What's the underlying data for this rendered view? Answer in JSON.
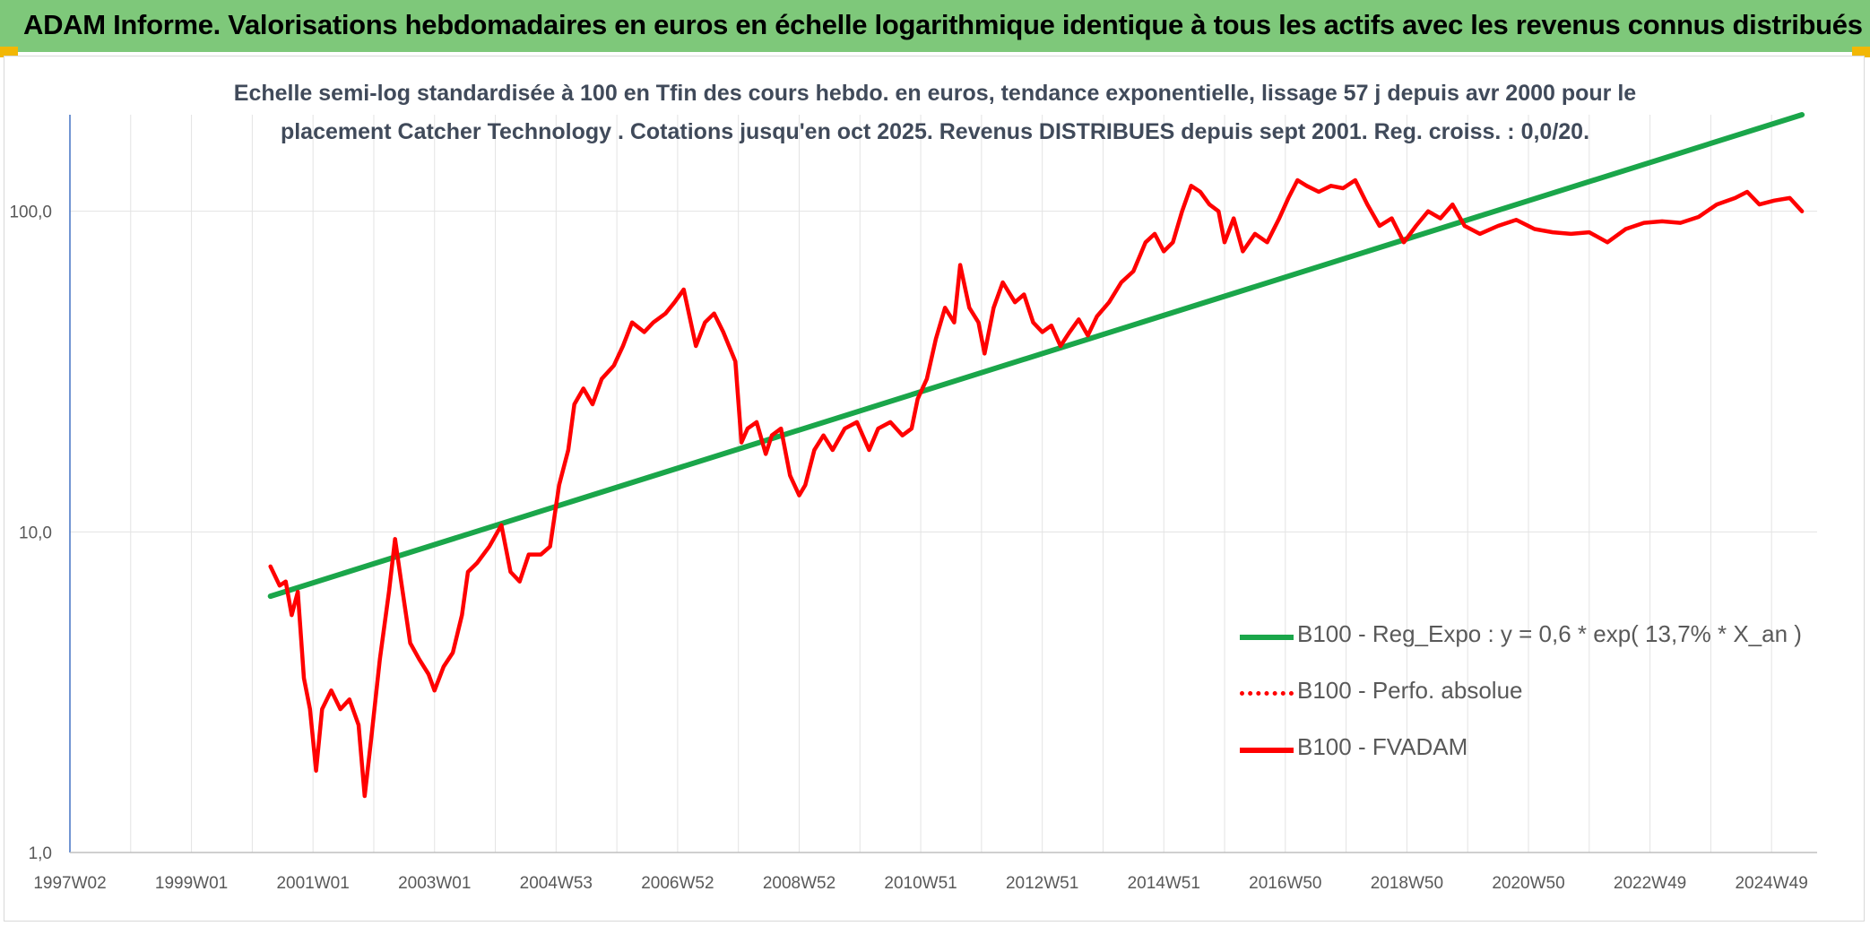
{
  "header": {
    "title": "ADAM Informe. Valorisations hebdomadaires en euros en échelle logarithmique identique à tous les actifs avec les revenus connus distribués"
  },
  "subtitle": {
    "line1": "Echelle semi-log standardisée à 100 en Tfin des cours hebdo. en euros, tendance exponentielle, lissage 57 j depuis avr 2000 pour le",
    "line2": "placement Catcher Technology . Cotations jusqu'en oct 2025. Revenus DISTRIBUES depuis sept 2001. Reg. croiss. : 0,0/20."
  },
  "legend": {
    "items": [
      {
        "label": "B100 - Reg_Expo : y = 0,6 * exp( 13,7% *  X_an )",
        "color": "#1aa64a",
        "style": "solid"
      },
      {
        "label": "B100 - Perfo. absolue",
        "color": "#ff0000",
        "style": "dotted"
      },
      {
        "label": "B100 - FVADAM",
        "color": "#ff0000",
        "style": "solid"
      }
    ]
  },
  "chart_data": {
    "type": "line",
    "title": "Echelle semi-log standardisée à 100 en Tfin des cours hebdo. en euros, tendance exponentielle, lissage 57 j depuis avr 2000 pour le placement Catcher Technology . Cotations jusqu'en oct 2025. Revenus DISTRIBUES depuis sept 2001. Reg. croiss. : 0,0/20.",
    "y_scale": "log",
    "ylim": [
      1,
      200
    ],
    "xlim": [
      1997.0,
      2025.75
    ],
    "y_ticks": [
      {
        "value": 1,
        "label": "1,0"
      },
      {
        "value": 10,
        "label": "10,0"
      },
      {
        "value": 100,
        "label": "100,0"
      }
    ],
    "x_ticks": [
      {
        "year": 1997.0,
        "label": "1997W02"
      },
      {
        "year": 1999.0,
        "label": "1999W01"
      },
      {
        "year": 2001.0,
        "label": "2001W01"
      },
      {
        "year": 2003.0,
        "label": "2003W01"
      },
      {
        "year": 2005.0,
        "label": "2004W53"
      },
      {
        "year": 2007.0,
        "label": "2006W52"
      },
      {
        "year": 2009.0,
        "label": "2008W52"
      },
      {
        "year": 2011.0,
        "label": "2010W51"
      },
      {
        "year": 2013.0,
        "label": "2012W51"
      },
      {
        "year": 2015.0,
        "label": "2014W51"
      },
      {
        "year": 2017.0,
        "label": "2016W50"
      },
      {
        "year": 2019.0,
        "label": "2018W50"
      },
      {
        "year": 2021.0,
        "label": "2020W50"
      },
      {
        "year": 2023.0,
        "label": "2022W49"
      },
      {
        "year": 2025.0,
        "label": "2024W49"
      }
    ],
    "series": [
      {
        "name": "B100 - Reg_Expo : y = 0,6 * exp( 13,7% *  X_an )",
        "color": "#1aa64a",
        "points": [
          [
            2000.3,
            6.3
          ],
          [
            2025.5,
            200
          ]
        ]
      },
      {
        "name": "B100 - FVADAM",
        "color": "#ff0000",
        "points": [
          [
            2000.3,
            7.8
          ],
          [
            2000.45,
            6.8
          ],
          [
            2000.55,
            7.0
          ],
          [
            2000.65,
            5.5
          ],
          [
            2000.75,
            6.5
          ],
          [
            2000.85,
            3.5
          ],
          [
            2000.95,
            2.8
          ],
          [
            2001.05,
            1.8
          ],
          [
            2001.15,
            2.8
          ],
          [
            2001.3,
            3.2
          ],
          [
            2001.45,
            2.8
          ],
          [
            2001.6,
            3.0
          ],
          [
            2001.75,
            2.5
          ],
          [
            2001.85,
            1.5
          ],
          [
            2001.95,
            2.2
          ],
          [
            2002.1,
            4.0
          ],
          [
            2002.25,
            6.5
          ],
          [
            2002.35,
            9.5
          ],
          [
            2002.45,
            7.0
          ],
          [
            2002.6,
            4.5
          ],
          [
            2002.75,
            4.0
          ],
          [
            2002.9,
            3.6
          ],
          [
            2003.0,
            3.2
          ],
          [
            2003.15,
            3.8
          ],
          [
            2003.3,
            4.2
          ],
          [
            2003.45,
            5.5
          ],
          [
            2003.55,
            7.5
          ],
          [
            2003.7,
            8.0
          ],
          [
            2003.9,
            9.0
          ],
          [
            2004.1,
            10.5
          ],
          [
            2004.25,
            7.5
          ],
          [
            2004.4,
            7.0
          ],
          [
            2004.55,
            8.5
          ],
          [
            2004.75,
            8.5
          ],
          [
            2004.9,
            9.0
          ],
          [
            2005.05,
            14.0
          ],
          [
            2005.2,
            18.0
          ],
          [
            2005.3,
            25.0
          ],
          [
            2005.45,
            28.0
          ],
          [
            2005.6,
            25.0
          ],
          [
            2005.75,
            30.0
          ],
          [
            2005.95,
            33.0
          ],
          [
            2006.1,
            38.0
          ],
          [
            2006.25,
            45.0
          ],
          [
            2006.45,
            42.0
          ],
          [
            2006.6,
            45.0
          ],
          [
            2006.8,
            48.0
          ],
          [
            2006.95,
            52.0
          ],
          [
            2007.1,
            57.0
          ],
          [
            2007.3,
            38.0
          ],
          [
            2007.45,
            45.0
          ],
          [
            2007.6,
            48.0
          ],
          [
            2007.75,
            42.0
          ],
          [
            2007.95,
            34.0
          ],
          [
            2008.05,
            19.0
          ],
          [
            2008.15,
            21.0
          ],
          [
            2008.3,
            22.0
          ],
          [
            2008.45,
            17.5
          ],
          [
            2008.55,
            20.0
          ],
          [
            2008.7,
            21.0
          ],
          [
            2008.85,
            15.0
          ],
          [
            2009.0,
            13.0
          ],
          [
            2009.1,
            14.0
          ],
          [
            2009.25,
            18.0
          ],
          [
            2009.4,
            20.0
          ],
          [
            2009.55,
            18.0
          ],
          [
            2009.75,
            21.0
          ],
          [
            2009.95,
            22.0
          ],
          [
            2010.15,
            18.0
          ],
          [
            2010.3,
            21.0
          ],
          [
            2010.5,
            22.0
          ],
          [
            2010.7,
            20.0
          ],
          [
            2010.85,
            21.0
          ],
          [
            2010.95,
            26.0
          ],
          [
            2011.1,
            30.0
          ],
          [
            2011.25,
            40.0
          ],
          [
            2011.4,
            50.0
          ],
          [
            2011.55,
            45.0
          ],
          [
            2011.65,
            68.0
          ],
          [
            2011.8,
            50.0
          ],
          [
            2011.95,
            45.0
          ],
          [
            2012.05,
            36.0
          ],
          [
            2012.2,
            50.0
          ],
          [
            2012.35,
            60.0
          ],
          [
            2012.55,
            52.0
          ],
          [
            2012.7,
            55.0
          ],
          [
            2012.85,
            45.0
          ],
          [
            2013.0,
            42.0
          ],
          [
            2013.15,
            44.0
          ],
          [
            2013.3,
            38.0
          ],
          [
            2013.45,
            42.0
          ],
          [
            2013.6,
            46.0
          ],
          [
            2013.75,
            41.0
          ],
          [
            2013.9,
            47.0
          ],
          [
            2014.1,
            52.0
          ],
          [
            2014.3,
            60.0
          ],
          [
            2014.5,
            65.0
          ],
          [
            2014.7,
            80.0
          ],
          [
            2014.85,
            85.0
          ],
          [
            2015.0,
            75.0
          ],
          [
            2015.15,
            80.0
          ],
          [
            2015.3,
            100.0
          ],
          [
            2015.45,
            120.0
          ],
          [
            2015.6,
            115.0
          ],
          [
            2015.75,
            105.0
          ],
          [
            2015.9,
            100.0
          ],
          [
            2016.0,
            80.0
          ],
          [
            2016.15,
            95.0
          ],
          [
            2016.3,
            75.0
          ],
          [
            2016.5,
            85.0
          ],
          [
            2016.7,
            80.0
          ],
          [
            2016.9,
            95.0
          ],
          [
            2017.05,
            110.0
          ],
          [
            2017.2,
            125.0
          ],
          [
            2017.35,
            120.0
          ],
          [
            2017.55,
            115.0
          ],
          [
            2017.75,
            120.0
          ],
          [
            2017.95,
            118.0
          ],
          [
            2018.15,
            125.0
          ],
          [
            2018.35,
            105.0
          ],
          [
            2018.55,
            90.0
          ],
          [
            2018.75,
            95.0
          ],
          [
            2018.95,
            80.0
          ],
          [
            2019.15,
            90.0
          ],
          [
            2019.35,
            100.0
          ],
          [
            2019.55,
            95.0
          ],
          [
            2019.75,
            105.0
          ],
          [
            2019.95,
            90.0
          ],
          [
            2020.2,
            85.0
          ],
          [
            2020.5,
            90.0
          ],
          [
            2020.8,
            94.0
          ],
          [
            2021.1,
            88.0
          ],
          [
            2021.4,
            86.0
          ],
          [
            2021.7,
            85.0
          ],
          [
            2022.0,
            86.0
          ],
          [
            2022.3,
            80.0
          ],
          [
            2022.6,
            88.0
          ],
          [
            2022.9,
            92.0
          ],
          [
            2023.2,
            93.0
          ],
          [
            2023.5,
            92.0
          ],
          [
            2023.8,
            96.0
          ],
          [
            2024.1,
            105.0
          ],
          [
            2024.4,
            110.0
          ],
          [
            2024.6,
            115.0
          ],
          [
            2024.8,
            105.0
          ],
          [
            2025.05,
            108.0
          ],
          [
            2025.3,
            110.0
          ],
          [
            2025.5,
            100.0
          ]
        ]
      }
    ]
  }
}
